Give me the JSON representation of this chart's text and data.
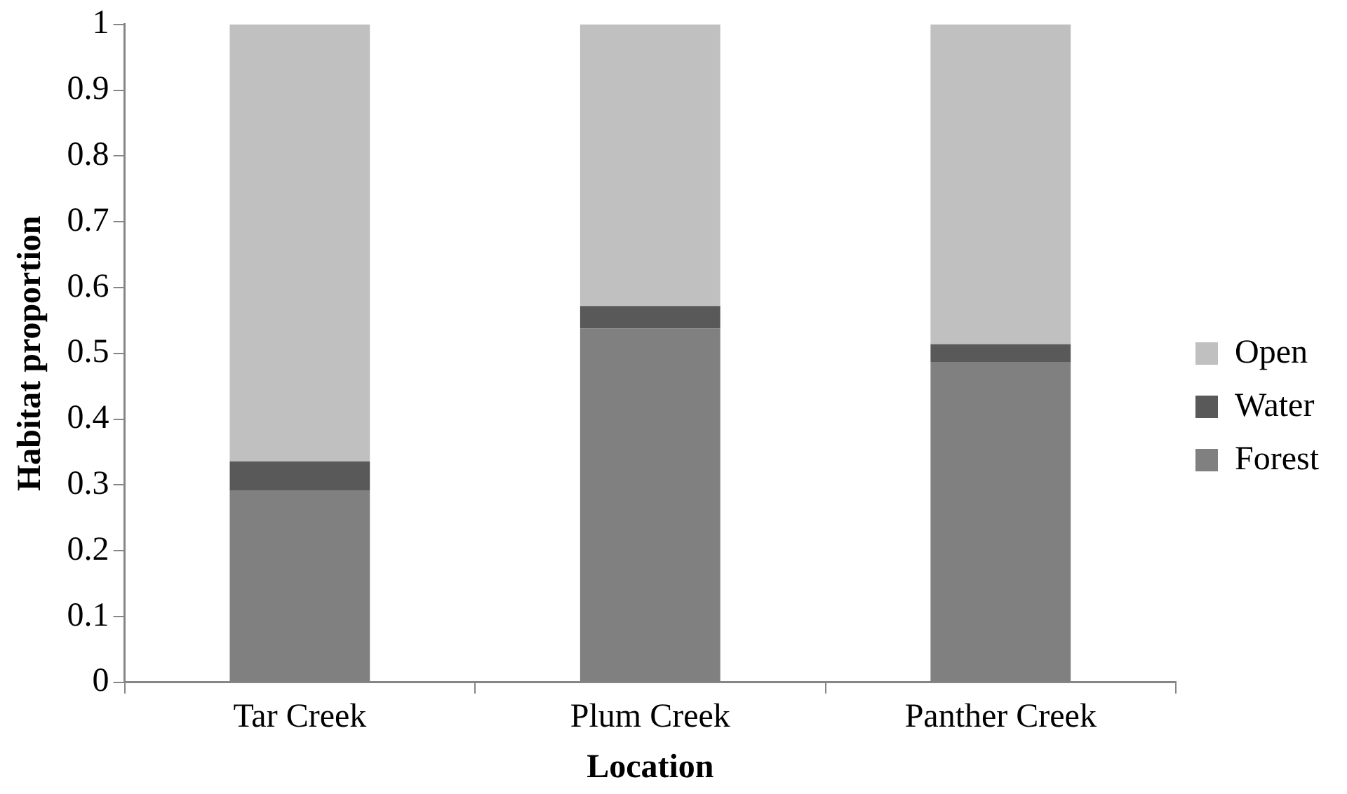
{
  "chart_data": {
    "type": "bar",
    "stacked": true,
    "xlabel": "Location",
    "ylabel": "Habitat proportion",
    "categories": [
      "Tar Creek",
      "Plum Creek",
      "Panther Creek"
    ],
    "series": [
      {
        "name": "Forest",
        "color": "#808080",
        "values": [
          0.292,
          0.538,
          0.487
        ]
      },
      {
        "name": "Water",
        "color": "#595959",
        "values": [
          0.044,
          0.034,
          0.027
        ]
      },
      {
        "name": "Open",
        "color": "#c0c0c0",
        "values": [
          0.664,
          0.428,
          0.486
        ]
      }
    ],
    "ylim": [
      0,
      1
    ],
    "yticks": [
      0,
      0.1,
      0.2,
      0.3,
      0.4,
      0.5,
      0.6,
      0.7,
      0.8,
      0.9,
      1
    ],
    "grid": false,
    "legend": "right"
  }
}
